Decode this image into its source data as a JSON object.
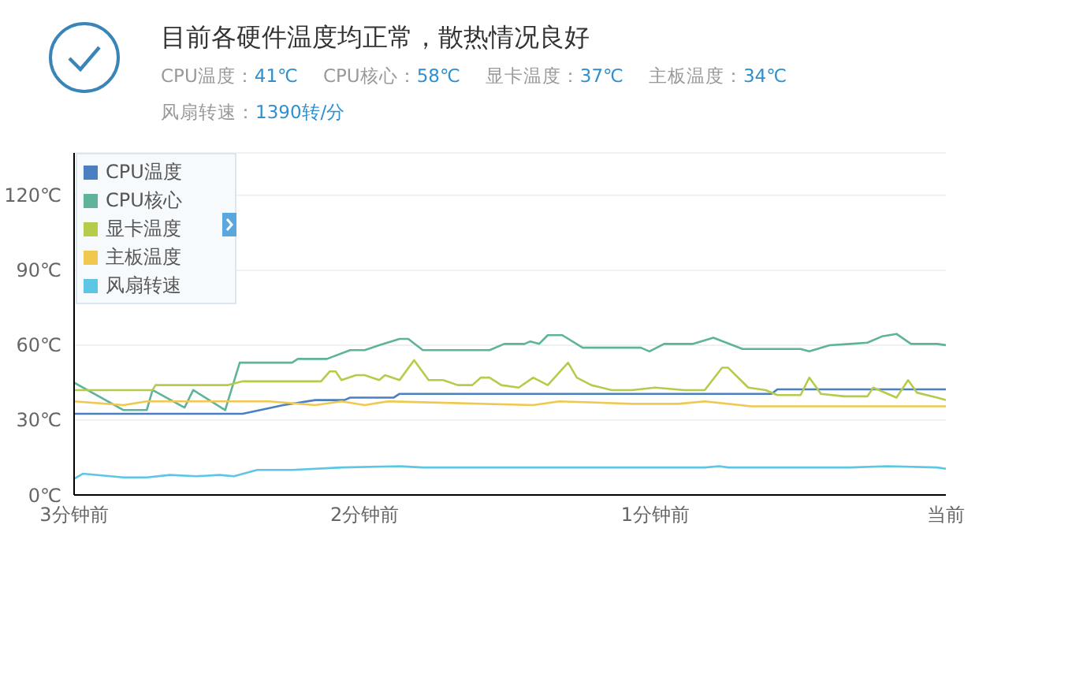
{
  "chart_data": {
    "type": "line",
    "title": "目前各硬件温度均正常，散热情况良好",
    "annotations": [
      "CPU温度：41℃",
      "CPU核心：58℃",
      "显卡温度：37℃",
      "主板温度：34℃",
      "风扇转速：1390转/分"
    ],
    "xlim": [
      3,
      0
    ],
    "xticks": [
      {
        "value": 3,
        "label": "3分钟前"
      },
      {
        "value": 2,
        "label": "2分钟前"
      },
      {
        "value": 1,
        "label": "1分钟前"
      },
      {
        "value": 0,
        "label": "当前"
      }
    ],
    "ylim": [
      0,
      137
    ],
    "yticks": [
      {
        "value": 0,
        "label": "0℃"
      },
      {
        "value": 30,
        "label": "30℃"
      },
      {
        "value": 60,
        "label": "60℃"
      },
      {
        "value": 90,
        "label": "90℃"
      },
      {
        "value": 120,
        "label": "120℃"
      }
    ],
    "grid": "y",
    "legend": "top left",
    "marker": "none",
    "series": [
      {
        "name": "CPU温度",
        "color": "#4a7fc0",
        "x": [
          3,
          2.42,
          2.28,
          2.17,
          2.07,
          2.05,
          1.9,
          1.88,
          0.6,
          0.58,
          0
        ],
        "values": [
          32.5,
          32.5,
          36,
          38,
          38,
          39,
          39,
          40.5,
          40.5,
          42.3,
          42.3
        ]
      },
      {
        "name": "CPU核心",
        "color": "#5fb39b",
        "x": [
          3,
          2.83,
          2.75,
          2.73,
          2.62,
          2.59,
          2.48,
          2.43,
          2.25,
          2.23,
          2.13,
          2.05,
          2,
          1.95,
          1.88,
          1.85,
          1.8,
          1.57,
          1.52,
          1.45,
          1.43,
          1.4,
          1.37,
          1.32,
          1.25,
          1.05,
          1.02,
          0.97,
          0.87,
          0.8,
          0.7,
          0.5,
          0.47,
          0.4,
          0.33,
          0.27,
          0.22,
          0.17,
          0.12,
          0.03,
          0
        ],
        "values": [
          45,
          34,
          34,
          42,
          35,
          42,
          34,
          53,
          53,
          54.5,
          54.5,
          58,
          58,
          60,
          62.5,
          62.5,
          58,
          58,
          60.5,
          60.5,
          61.5,
          60.5,
          64,
          64,
          59,
          59,
          57.5,
          60.5,
          60.5,
          63,
          58.5,
          58.5,
          57.5,
          60,
          60.5,
          61,
          63.5,
          64.5,
          60.5,
          60.5,
          60
        ]
      },
      {
        "name": "显卡温度",
        "color": "#b5cc4a",
        "x": [
          3,
          2.73,
          2.72,
          2.47,
          2.42,
          2.15,
          2.12,
          2.1,
          2.08,
          2.03,
          2,
          1.95,
          1.93,
          1.88,
          1.83,
          1.78,
          1.73,
          1.68,
          1.63,
          1.6,
          1.57,
          1.53,
          1.47,
          1.42,
          1.37,
          1.3,
          1.27,
          1.22,
          1.15,
          1.08,
          1,
          0.9,
          0.83,
          0.77,
          0.75,
          0.68,
          0.62,
          0.58,
          0.5,
          0.47,
          0.43,
          0.35,
          0.27,
          0.25,
          0.17,
          0.13,
          0.1,
          0.03,
          0
        ],
        "values": [
          42,
          42,
          44,
          44,
          45.5,
          45.5,
          49.5,
          49.5,
          46,
          48,
          48,
          46,
          48,
          46,
          54,
          46,
          46,
          44,
          44,
          47,
          47,
          44,
          43,
          47,
          44,
          53,
          47,
          44,
          42,
          42,
          43,
          42,
          42,
          51,
          51,
          43,
          42,
          40,
          40,
          47,
          40.5,
          39.5,
          39.5,
          43,
          39,
          46,
          41,
          39,
          38
        ]
      },
      {
        "name": "主板温度",
        "color": "#f0c850",
        "x": [
          3,
          2.83,
          2.75,
          2.33,
          2.17,
          2.08,
          2,
          1.92,
          1.42,
          1.33,
          1.08,
          0.92,
          0.83,
          0.67,
          0
        ],
        "values": [
          37.5,
          36,
          37.5,
          37.5,
          36,
          37.5,
          36,
          37.5,
          36,
          37.5,
          36.5,
          36.5,
          37.5,
          35.5,
          35.5
        ]
      },
      {
        "name": "风扇转速",
        "color": "#5cc6e6",
        "x": [
          3,
          2.97,
          2.83,
          2.75,
          2.67,
          2.58,
          2.5,
          2.45,
          2.37,
          2.25,
          2.08,
          1.88,
          1.8,
          1.42,
          0.83,
          0.78,
          0.75,
          0.33,
          0.2,
          0.03,
          0
        ],
        "values": [
          6.5,
          8.5,
          7,
          7,
          8,
          7.5,
          8,
          7.5,
          10,
          10,
          11,
          11.5,
          11,
          11,
          11,
          11.5,
          11,
          11,
          11.5,
          11,
          10.5
        ]
      }
    ]
  }
}
